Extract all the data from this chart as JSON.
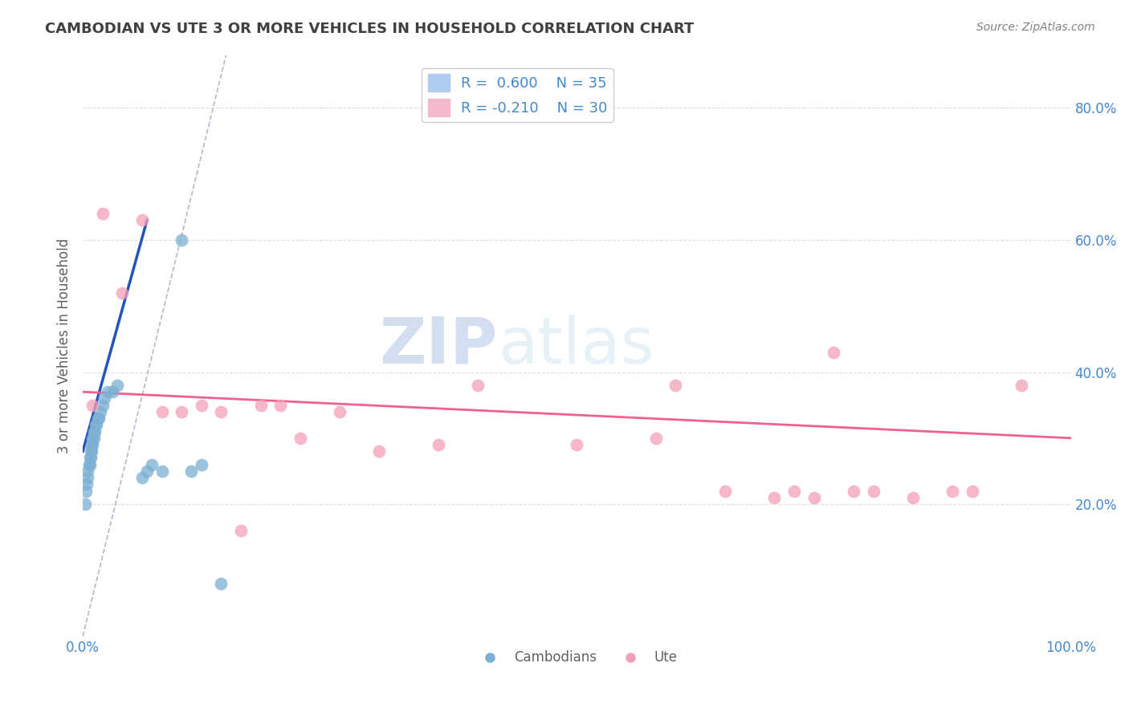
{
  "title": "CAMBODIAN VS UTE 3 OR MORE VEHICLES IN HOUSEHOLD CORRELATION CHART",
  "source": "Source: ZipAtlas.com",
  "ylabel": "3 or more Vehicles in Household",
  "xlim": [
    0.0,
    1.0
  ],
  "ylim": [
    0.0,
    0.88
  ],
  "ytick_vals": [
    0.2,
    0.4,
    0.6,
    0.8
  ],
  "ytick_labels": [
    "20.0%",
    "40.0%",
    "60.0%",
    "80.0%"
  ],
  "watermark_zip": "ZIP",
  "watermark_atlas": "atlas",
  "cambodian_scatter_x": [
    0.002,
    0.003,
    0.004,
    0.005,
    0.005,
    0.006,
    0.007,
    0.007,
    0.008,
    0.008,
    0.009,
    0.009,
    0.01,
    0.01,
    0.011,
    0.011,
    0.012,
    0.013,
    0.014,
    0.015,
    0.016,
    0.018,
    0.02,
    0.022,
    0.025,
    0.03,
    0.035,
    0.06,
    0.065,
    0.07,
    0.08,
    0.1,
    0.11,
    0.12,
    0.14
  ],
  "cambodian_scatter_y": [
    0.2,
    0.22,
    0.23,
    0.24,
    0.25,
    0.26,
    0.26,
    0.27,
    0.27,
    0.28,
    0.28,
    0.29,
    0.29,
    0.3,
    0.3,
    0.31,
    0.31,
    0.32,
    0.32,
    0.33,
    0.33,
    0.34,
    0.35,
    0.36,
    0.37,
    0.37,
    0.38,
    0.24,
    0.25,
    0.26,
    0.25,
    0.6,
    0.25,
    0.26,
    0.08
  ],
  "ute_scatter_x": [
    0.01,
    0.02,
    0.04,
    0.06,
    0.08,
    0.1,
    0.12,
    0.14,
    0.16,
    0.18,
    0.2,
    0.22,
    0.26,
    0.3,
    0.36,
    0.4,
    0.5,
    0.58,
    0.6,
    0.65,
    0.7,
    0.72,
    0.74,
    0.76,
    0.78,
    0.8,
    0.84,
    0.88,
    0.9,
    0.95
  ],
  "ute_scatter_y": [
    0.35,
    0.64,
    0.52,
    0.63,
    0.34,
    0.34,
    0.35,
    0.34,
    0.16,
    0.35,
    0.35,
    0.3,
    0.34,
    0.28,
    0.29,
    0.38,
    0.29,
    0.3,
    0.38,
    0.22,
    0.21,
    0.22,
    0.21,
    0.43,
    0.22,
    0.22,
    0.21,
    0.22,
    0.22,
    0.38
  ],
  "cambodian_color": "#7bafd4",
  "ute_color": "#f4a0b8",
  "cambodian_line_color": "#2255bb",
  "ute_line_color": "#f06090",
  "ref_line_color": "#9999bb",
  "background_color": "#ffffff",
  "grid_color": "#dddddd",
  "title_color": "#404040",
  "source_color": "#808080",
  "axis_label_color": "#4488cc",
  "legend_r_color": "#4488cc"
}
